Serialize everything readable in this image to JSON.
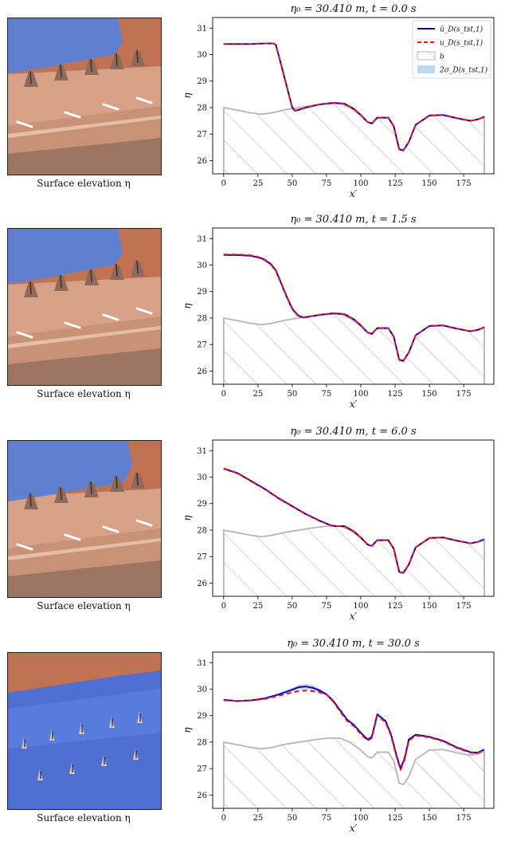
{
  "figures": [
    {
      "title": "η₀ = 30.410 m, t = 0.0 s",
      "caption": "Surface elevation η",
      "xlabel": "x′",
      "ylabel": "η",
      "render_flood": "low"
    },
    {
      "title": "η₀ = 30.410 m, t = 1.5 s",
      "caption": "Surface elevation η",
      "xlabel": "x′",
      "ylabel": "η",
      "render_flood": "low"
    },
    {
      "title": "η₀ = 30.410 m, t = 6.0 s",
      "caption": "Surface elevation η",
      "xlabel": "x′",
      "ylabel": "η",
      "render_flood": "mid"
    },
    {
      "title": "η₀ = 30.410 m, t = 30.0 s",
      "caption": "Surface elevation η",
      "xlabel": "x′",
      "ylabel": "η",
      "render_flood": "full"
    }
  ],
  "legend": {
    "entries": [
      "û_D(s_tst,1)",
      "u_D(s_tst,1)",
      "b",
      "2σ_D(s_tst,1)"
    ],
    "placement": "top-right"
  },
  "colors": {
    "prediction": "#0000cc",
    "truth": "#ee1111",
    "bathymetry": "#b5b5b5",
    "uncertainty": "#bcd7ef",
    "water": "#5b7fd6",
    "terrain": "#c9957a"
  },
  "chart_data": [
    {
      "type": "line",
      "title": "η₀ = 30.410 m, t = 0.0 s",
      "xlabel": "x′",
      "ylabel": "η",
      "xlim": [
        -8,
        197
      ],
      "ylim": [
        25.5,
        31.4
      ],
      "xticks": [
        0,
        25,
        50,
        75,
        100,
        125,
        150,
        175
      ],
      "yticks": [
        26,
        27,
        28,
        29,
        30,
        31
      ],
      "grid": false,
      "legend": "top-right",
      "bathymetry": {
        "x": [
          0,
          10,
          20,
          28,
          35,
          45,
          55,
          65,
          75,
          85,
          92,
          100,
          105,
          108,
          112,
          120,
          124,
          128,
          131,
          135,
          140,
          150,
          160,
          170,
          180,
          185,
          190
        ],
        "y": [
          28.0,
          27.9,
          27.8,
          27.75,
          27.8,
          27.92,
          28.0,
          28.08,
          28.15,
          28.15,
          28.0,
          27.7,
          27.45,
          27.4,
          27.62,
          27.62,
          27.3,
          26.45,
          26.4,
          26.7,
          27.35,
          27.7,
          27.72,
          27.6,
          27.5,
          27.55,
          27.65
        ]
      },
      "series": [
        {
          "name": "û_D(s_tst,1)",
          "x": [
            0,
            10,
            20,
            30,
            36,
            38,
            42,
            46,
            50,
            52,
            55,
            60,
            70,
            80,
            88,
            95,
            100,
            105,
            108,
            112,
            120,
            124,
            128,
            131,
            135,
            140,
            150,
            160,
            170,
            180,
            185,
            190
          ],
          "y": [
            30.4,
            30.4,
            30.4,
            30.42,
            30.42,
            30.38,
            29.6,
            28.8,
            28.0,
            27.88,
            27.92,
            28.0,
            28.12,
            28.18,
            28.15,
            27.95,
            27.72,
            27.45,
            27.4,
            27.62,
            27.62,
            27.3,
            26.42,
            26.38,
            26.7,
            27.35,
            27.7,
            27.72,
            27.6,
            27.5,
            27.55,
            27.65
          ],
          "style": "solid",
          "color": "#0000cc"
        },
        {
          "name": "u_D(s_tst,1)",
          "x": [
            0,
            10,
            20,
            30,
            36,
            38,
            42,
            46,
            50,
            52,
            55,
            60,
            70,
            80,
            88,
            95,
            100,
            105,
            108,
            112,
            120,
            124,
            128,
            131,
            135,
            140,
            150,
            160,
            170,
            180,
            185,
            190
          ],
          "y": [
            30.4,
            30.4,
            30.4,
            30.42,
            30.42,
            30.38,
            29.6,
            28.8,
            28.0,
            27.88,
            27.92,
            28.0,
            28.12,
            28.18,
            28.15,
            27.95,
            27.72,
            27.45,
            27.4,
            27.62,
            27.62,
            27.3,
            26.42,
            26.38,
            26.7,
            27.35,
            27.7,
            27.72,
            27.6,
            27.5,
            27.55,
            27.65
          ],
          "style": "dashed",
          "color": "#ee1111"
        }
      ]
    },
    {
      "type": "line",
      "title": "η₀ = 30.410 m, t = 1.5 s",
      "xlabel": "x′",
      "ylabel": "η",
      "xlim": [
        -8,
        197
      ],
      "ylim": [
        25.5,
        31.4
      ],
      "xticks": [
        0,
        25,
        50,
        75,
        100,
        125,
        150,
        175
      ],
      "yticks": [
        26,
        27,
        28,
        29,
        30,
        31
      ],
      "grid": false,
      "legend": "none",
      "bathymetry": {
        "x": [
          0,
          10,
          20,
          28,
          35,
          45,
          55,
          65,
          75,
          85,
          92,
          100,
          105,
          108,
          112,
          120,
          124,
          128,
          131,
          135,
          140,
          150,
          160,
          170,
          180,
          185,
          190
        ],
        "y": [
          28.0,
          27.9,
          27.8,
          27.75,
          27.8,
          27.92,
          28.0,
          28.08,
          28.15,
          28.15,
          28.0,
          27.7,
          27.45,
          27.4,
          27.62,
          27.62,
          27.3,
          26.45,
          26.4,
          26.7,
          27.35,
          27.7,
          27.72,
          27.6,
          27.5,
          27.55,
          27.65
        ]
      },
      "series": [
        {
          "name": "û_D(s_tst,1)",
          "x": [
            0,
            10,
            20,
            28,
            34,
            38,
            42,
            46,
            50,
            54,
            58,
            62,
            70,
            80,
            88,
            95,
            100,
            105,
            108,
            112,
            120,
            124,
            128,
            131,
            135,
            140,
            150,
            160,
            170,
            180,
            185,
            190
          ],
          "y": [
            30.38,
            30.38,
            30.35,
            30.25,
            30.05,
            29.8,
            29.3,
            28.8,
            28.35,
            28.1,
            28.02,
            28.05,
            28.12,
            28.18,
            28.15,
            27.95,
            27.72,
            27.45,
            27.4,
            27.62,
            27.62,
            27.3,
            26.42,
            26.38,
            26.7,
            27.35,
            27.7,
            27.72,
            27.6,
            27.5,
            27.55,
            27.65
          ],
          "style": "solid",
          "color": "#0000cc"
        },
        {
          "name": "u_D(s_tst,1)",
          "x": [
            0,
            10,
            20,
            28,
            34,
            38,
            42,
            46,
            50,
            54,
            58,
            62,
            70,
            80,
            88,
            95,
            100,
            105,
            108,
            112,
            120,
            124,
            128,
            131,
            135,
            140,
            150,
            160,
            170,
            180,
            185,
            190
          ],
          "y": [
            30.4,
            30.4,
            30.37,
            30.27,
            30.07,
            29.82,
            29.32,
            28.82,
            28.37,
            28.12,
            28.03,
            28.05,
            28.12,
            28.18,
            28.15,
            27.95,
            27.72,
            27.45,
            27.4,
            27.62,
            27.62,
            27.3,
            26.42,
            26.38,
            26.7,
            27.35,
            27.7,
            27.72,
            27.6,
            27.5,
            27.55,
            27.65
          ],
          "style": "dashed",
          "color": "#ee1111"
        }
      ]
    },
    {
      "type": "line",
      "title": "η₀ = 30.410 m, t = 6.0 s",
      "xlabel": "x′",
      "ylabel": "η",
      "xlim": [
        -8,
        197
      ],
      "ylim": [
        25.5,
        31.4
      ],
      "xticks": [
        0,
        25,
        50,
        75,
        100,
        125,
        150,
        175
      ],
      "yticks": [
        26,
        27,
        28,
        29,
        30,
        31
      ],
      "grid": false,
      "legend": "none",
      "bathymetry": {
        "x": [
          0,
          10,
          20,
          28,
          35,
          45,
          55,
          65,
          75,
          85,
          92,
          100,
          105,
          108,
          112,
          120,
          124,
          128,
          131,
          135,
          140,
          150,
          160,
          170,
          180,
          185,
          190
        ],
        "y": [
          28.0,
          27.9,
          27.8,
          27.75,
          27.8,
          27.92,
          28.0,
          28.08,
          28.15,
          28.15,
          28.0,
          27.7,
          27.45,
          27.4,
          27.62,
          27.62,
          27.3,
          26.45,
          26.4,
          26.7,
          27.35,
          27.7,
          27.72,
          27.6,
          27.5,
          27.55,
          27.65
        ]
      },
      "series": [
        {
          "name": "û_D(s_tst,1)",
          "x": [
            0,
            10,
            20,
            30,
            40,
            50,
            60,
            70,
            78,
            82,
            88,
            95,
            100,
            105,
            108,
            112,
            120,
            124,
            128,
            131,
            135,
            140,
            150,
            160,
            170,
            180,
            185,
            190
          ],
          "y": [
            30.32,
            30.15,
            29.85,
            29.55,
            29.2,
            28.9,
            28.6,
            28.35,
            28.18,
            28.15,
            28.15,
            27.95,
            27.72,
            27.45,
            27.4,
            27.62,
            27.62,
            27.3,
            26.42,
            26.38,
            26.7,
            27.35,
            27.7,
            27.72,
            27.6,
            27.5,
            27.55,
            27.65
          ],
          "style": "solid",
          "color": "#0000cc"
        },
        {
          "name": "u_D(s_tst,1)",
          "x": [
            0,
            10,
            20,
            30,
            40,
            50,
            60,
            70,
            78,
            82,
            88,
            95,
            100,
            105,
            108,
            112,
            120,
            124,
            128,
            131,
            135,
            140,
            150,
            160,
            170,
            180,
            185,
            190
          ],
          "y": [
            30.33,
            30.16,
            29.86,
            29.56,
            29.21,
            28.91,
            28.61,
            28.36,
            28.18,
            28.15,
            28.15,
            27.95,
            27.72,
            27.45,
            27.4,
            27.62,
            27.62,
            27.3,
            26.42,
            26.38,
            26.7,
            27.35,
            27.7,
            27.72,
            27.6,
            27.5,
            27.55,
            27.65
          ],
          "style": "dashed",
          "color": "#ee1111"
        }
      ]
    },
    {
      "type": "line",
      "title": "η₀ = 30.410 m, t = 30.0 s",
      "xlabel": "x′",
      "ylabel": "η",
      "xlim": [
        -8,
        197
      ],
      "ylim": [
        25.5,
        31.4
      ],
      "xticks": [
        0,
        25,
        50,
        75,
        100,
        125,
        150,
        175
      ],
      "yticks": [
        26,
        27,
        28,
        29,
        30,
        31
      ],
      "grid": false,
      "legend": "none",
      "bathymetry": {
        "x": [
          0,
          10,
          20,
          28,
          35,
          45,
          55,
          65,
          75,
          85,
          92,
          100,
          105,
          108,
          112,
          120,
          124,
          128,
          131,
          135,
          140,
          150,
          160,
          170,
          180,
          185,
          190
        ],
        "y": [
          28.0,
          27.9,
          27.8,
          27.75,
          27.8,
          27.92,
          28.0,
          28.08,
          28.15,
          28.15,
          28.0,
          27.7,
          27.45,
          27.4,
          27.62,
          27.62,
          27.3,
          26.45,
          26.4,
          26.7,
          27.35,
          27.7,
          27.72,
          27.6,
          27.5,
          27.55,
          27.65
        ]
      },
      "uncertainty": {
        "x": [
          0,
          10,
          20,
          30,
          40,
          50,
          55,
          60,
          65,
          70,
          75,
          80,
          85,
          90,
          95,
          100,
          105,
          108,
          112,
          118,
          122,
          126,
          129,
          132,
          135,
          140,
          150,
          160,
          170,
          180,
          185,
          190
        ],
        "y": [
          29.6,
          29.55,
          29.58,
          29.65,
          29.8,
          29.98,
          30.08,
          30.1,
          30.05,
          29.95,
          29.8,
          29.55,
          29.2,
          28.85,
          28.65,
          28.35,
          28.1,
          28.2,
          29.05,
          28.8,
          28.3,
          27.5,
          27.0,
          27.4,
          28.1,
          28.28,
          28.2,
          28.05,
          27.8,
          27.62,
          27.6,
          27.72
        ],
        "halfwidth": [
          0.02,
          0.02,
          0.02,
          0.03,
          0.04,
          0.07,
          0.09,
          0.1,
          0.1,
          0.08,
          0.06,
          0.05,
          0.04,
          0.03,
          0.03,
          0.03,
          0.03,
          0.03,
          0.03,
          0.03,
          0.03,
          0.03,
          0.03,
          0.03,
          0.03,
          0.03,
          0.03,
          0.03,
          0.03,
          0.03,
          0.03,
          0.03
        ]
      },
      "series": [
        {
          "name": "û_D(s_tst,1)",
          "x": [
            0,
            10,
            20,
            30,
            40,
            50,
            55,
            60,
            65,
            70,
            75,
            80,
            85,
            90,
            95,
            100,
            105,
            108,
            112,
            118,
            122,
            126,
            129,
            132,
            135,
            140,
            150,
            160,
            170,
            180,
            185,
            190
          ],
          "y": [
            29.6,
            29.55,
            29.58,
            29.65,
            29.8,
            29.98,
            30.08,
            30.1,
            30.05,
            29.95,
            29.8,
            29.55,
            29.2,
            28.85,
            28.65,
            28.35,
            28.1,
            28.2,
            29.05,
            28.8,
            28.3,
            27.5,
            27.0,
            27.4,
            28.1,
            28.28,
            28.2,
            28.05,
            27.8,
            27.62,
            27.6,
            27.72
          ],
          "style": "solid",
          "color": "#0000cc"
        },
        {
          "name": "u_D(s_tst,1)",
          "x": [
            0,
            10,
            20,
            30,
            40,
            50,
            55,
            60,
            65,
            70,
            75,
            80,
            85,
            90,
            95,
            100,
            105,
            108,
            112,
            118,
            122,
            126,
            129,
            132,
            135,
            140,
            150,
            160,
            170,
            180,
            185,
            190
          ],
          "y": [
            29.58,
            29.55,
            29.57,
            29.63,
            29.75,
            29.88,
            29.93,
            29.95,
            29.92,
            29.88,
            29.8,
            29.52,
            29.15,
            28.8,
            28.6,
            28.3,
            28.05,
            28.15,
            29.0,
            28.75,
            28.25,
            27.45,
            26.95,
            27.35,
            28.05,
            28.25,
            28.18,
            28.03,
            27.78,
            27.6,
            27.58,
            27.7
          ],
          "style": "dashed",
          "color": "#ee1111"
        }
      ]
    }
  ]
}
